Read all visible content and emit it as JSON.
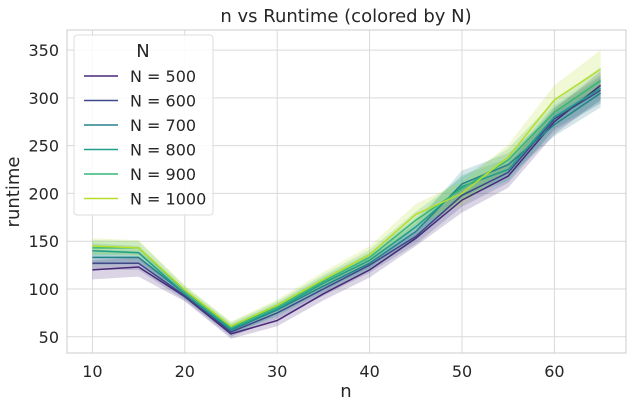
{
  "chart_data": {
    "type": "line",
    "title": "n vs Runtime (colored by N)",
    "xlabel": "n",
    "ylabel": "runtime",
    "xlim": [
      7.25,
      67.75
    ],
    "ylim": [
      33,
      371
    ],
    "xticks": [
      10,
      20,
      30,
      40,
      50,
      60
    ],
    "yticks": [
      50,
      100,
      150,
      200,
      250,
      300,
      350
    ],
    "grid": true,
    "legend": {
      "title": "N",
      "placement": "top-left"
    },
    "x": [
      10,
      15,
      20,
      25,
      30,
      35,
      40,
      45,
      50,
      55,
      60,
      65
    ],
    "series": [
      {
        "name": "N = 500",
        "color": "#482878",
        "values": [
          120,
          123,
          92,
          53,
          67,
          95,
          120,
          153,
          193,
          218,
          275,
          313
        ],
        "lower": [
          110,
          113,
          87,
          48,
          61,
          88,
          112,
          145,
          180,
          206,
          262,
          298
        ],
        "upper": [
          130,
          133,
          97,
          58,
          73,
          102,
          128,
          161,
          206,
          230,
          288,
          328
        ]
      },
      {
        "name": "N = 600",
        "color": "#3e4989",
        "values": [
          127,
          127,
          93,
          55,
          75,
          100,
          125,
          155,
          198,
          222,
          278,
          308
        ],
        "lower": [
          120,
          120,
          88,
          50,
          69,
          93,
          117,
          147,
          186,
          211,
          266,
          294
        ],
        "upper": [
          134,
          134,
          98,
          60,
          81,
          107,
          133,
          163,
          210,
          233,
          290,
          322
        ]
      },
      {
        "name": "N = 700",
        "color": "#26828e",
        "values": [
          133,
          133,
          95,
          57,
          78,
          103,
          127,
          160,
          210,
          230,
          272,
          305
        ],
        "lower": [
          125,
          126,
          90,
          52,
          72,
          96,
          119,
          151,
          196,
          218,
          260,
          290
        ],
        "upper": [
          141,
          140,
          100,
          62,
          84,
          110,
          135,
          169,
          224,
          242,
          284,
          320
        ]
      },
      {
        "name": "N = 800",
        "color": "#1f9e89",
        "values": [
          140,
          138,
          95,
          58,
          79,
          106,
          130,
          165,
          207,
          225,
          280,
          310
        ],
        "lower": [
          132,
          131,
          90,
          53,
          73,
          99,
          122,
          156,
          195,
          213,
          268,
          296
        ],
        "upper": [
          148,
          145,
          100,
          63,
          85,
          113,
          138,
          174,
          219,
          237,
          292,
          324
        ]
      },
      {
        "name": "N = 900",
        "color": "#35b779",
        "values": [
          143,
          143,
          98,
          60,
          81,
          108,
          133,
          172,
          205,
          235,
          285,
          318
        ],
        "lower": [
          135,
          136,
          93,
          55,
          75,
          101,
          125,
          163,
          193,
          223,
          273,
          304
        ],
        "upper": [
          151,
          150,
          103,
          65,
          87,
          115,
          141,
          181,
          217,
          247,
          297,
          332
        ]
      },
      {
        "name": "N = 1000",
        "color": "#b5de2b",
        "values": [
          145,
          143,
          99,
          61,
          83,
          110,
          136,
          178,
          200,
          238,
          298,
          330
        ],
        "lower": [
          137,
          135,
          94,
          56,
          77,
          102,
          127,
          167,
          188,
          225,
          283,
          312
        ],
        "upper": [
          153,
          151,
          104,
          66,
          89,
          118,
          145,
          189,
          212,
          251,
          313,
          350
        ]
      }
    ]
  }
}
